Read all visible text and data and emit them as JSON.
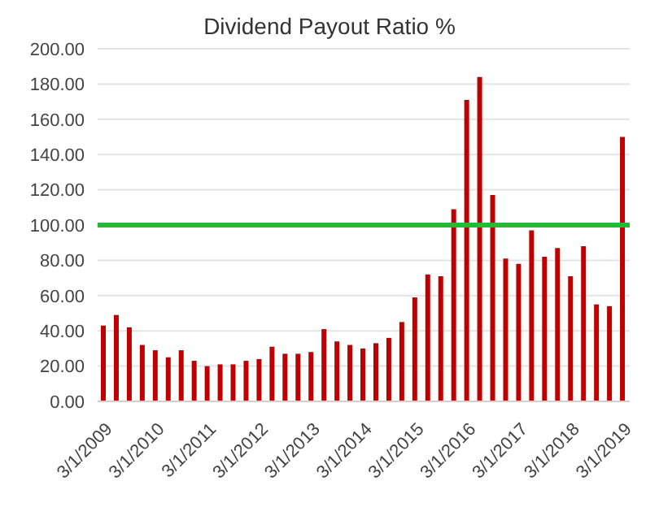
{
  "chart_data": {
    "type": "bar",
    "title": "Dividend Payout Ratio %",
    "categories": [
      "3/1/2009",
      null,
      null,
      null,
      "3/1/2010",
      null,
      null,
      null,
      "3/1/2011",
      null,
      null,
      null,
      "3/1/2012",
      null,
      null,
      null,
      "3/1/2013",
      null,
      null,
      null,
      "3/1/2014",
      null,
      null,
      null,
      "3/1/2015",
      null,
      null,
      null,
      "3/1/2016",
      null,
      null,
      null,
      "3/1/2017",
      null,
      null,
      null,
      "3/1/2018",
      null,
      null,
      null,
      "3/1/2019"
    ],
    "values": [
      43,
      49,
      42,
      32,
      29,
      25,
      29,
      23,
      20,
      21,
      21,
      23,
      24,
      31,
      27,
      27,
      28,
      41,
      34,
      32,
      30,
      33,
      36,
      45,
      59,
      72,
      71,
      109,
      171,
      184,
      117,
      81,
      78,
      97,
      82,
      87,
      71,
      88,
      55,
      54,
      150
    ],
    "color": "#c00000",
    "ylim": [
      0,
      200
    ],
    "yticks": [
      {
        "value": 0,
        "label": "0.00"
      },
      {
        "value": 20,
        "label": "20.00"
      },
      {
        "value": 40,
        "label": "40.00"
      },
      {
        "value": 60,
        "label": "60.00"
      },
      {
        "value": 80,
        "label": "80.00"
      },
      {
        "value": 100,
        "label": "100.00"
      },
      {
        "value": 120,
        "label": "120.00"
      },
      {
        "value": 140,
        "label": "140.00"
      },
      {
        "value": 160,
        "label": "160.00"
      },
      {
        "value": 180,
        "label": "180.00"
      },
      {
        "value": 200,
        "label": "200.00"
      }
    ],
    "grid": "y",
    "ref_lines": [
      {
        "axis": "y",
        "value": 100,
        "label": null,
        "color": "#22bb33"
      }
    ]
  }
}
